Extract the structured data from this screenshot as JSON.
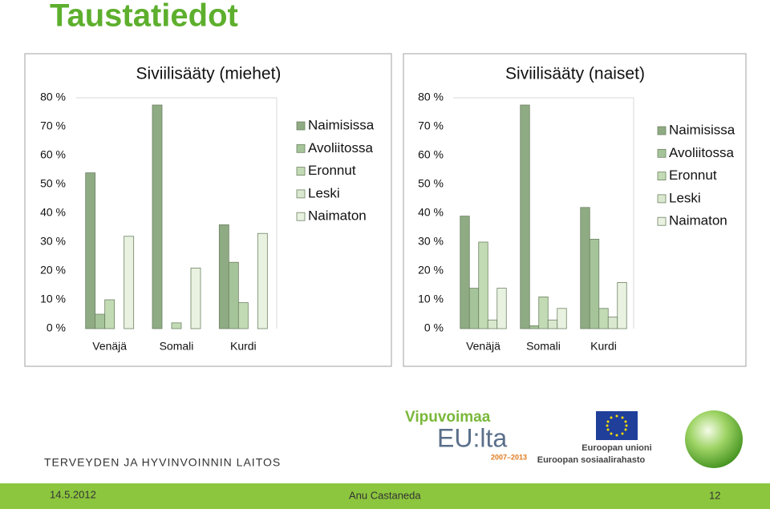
{
  "slide": {
    "title": "Taustatiedot",
    "footer": {
      "date": "14.5.2012",
      "author": "Anu Castaneda",
      "page": "12"
    },
    "logos": {
      "institute": "TERVEYDEN JA HYVINVOINNIN LAITOS",
      "program": "Vipuvoimaa",
      "program_sub": "EU:lta",
      "years": "2007–2013",
      "eu": "Euroopan unioni",
      "esf": "Euroopan sosiaalirahasto"
    }
  },
  "chart_data": [
    {
      "type": "bar",
      "title": "Siviilisääty (miehet)",
      "categories": [
        "Venäjä",
        "Somali",
        "Kurdi"
      ],
      "series": [
        {
          "name": "Naimisissa",
          "color": "#8fab84",
          "values": [
            54,
            77.5,
            36
          ]
        },
        {
          "name": "Avoliitossa",
          "color": "#a6c499",
          "values": [
            5,
            0,
            23
          ]
        },
        {
          "name": "Eronnut",
          "color": "#c3dbb4",
          "values": [
            10,
            2,
            9
          ]
        },
        {
          "name": "Leski",
          "color": "#d9e8cf",
          "values": [
            0,
            0,
            0
          ]
        },
        {
          "name": "Naimaton",
          "color": "#e9f2e1",
          "values": [
            32,
            21,
            33
          ]
        }
      ],
      "ylim": [
        0,
        80
      ],
      "yticks": [
        {
          "value": 0,
          "label": "0 %"
        },
        {
          "value": 10,
          "label": "10 %"
        },
        {
          "value": 20,
          "label": "20 %"
        },
        {
          "value": 30,
          "label": "30 %"
        },
        {
          "value": 40,
          "label": "40 %"
        },
        {
          "value": 50,
          "label": "50 %"
        },
        {
          "value": 60,
          "label": "60 %"
        },
        {
          "value": 70,
          "label": "70 %"
        },
        {
          "value": 80,
          "label": "80 %"
        }
      ],
      "grid": false,
      "legend": "right"
    },
    {
      "type": "bar",
      "title": "Siviilisääty (naiset)",
      "categories": [
        "Venäjä",
        "Somali",
        "Kurdi"
      ],
      "series": [
        {
          "name": "Naimisissa",
          "color": "#8fab84",
          "values": [
            39,
            77.5,
            42
          ]
        },
        {
          "name": "Avoliitossa",
          "color": "#a6c499",
          "values": [
            14,
            1,
            31
          ]
        },
        {
          "name": "Eronnut",
          "color": "#c3dbb4",
          "values": [
            30,
            11,
            7
          ]
        },
        {
          "name": "Leski",
          "color": "#d9e8cf",
          "values": [
            3,
            3,
            4
          ]
        },
        {
          "name": "Naimaton",
          "color": "#e9f2e1",
          "values": [
            14,
            7,
            16
          ]
        }
      ],
      "ylim": [
        0,
        80
      ],
      "yticks": [
        {
          "value": 0,
          "label": "0 %"
        },
        {
          "value": 10,
          "label": "10 %"
        },
        {
          "value": 20,
          "label": "20 %"
        },
        {
          "value": 30,
          "label": "30 %"
        },
        {
          "value": 40,
          "label": "40 %"
        },
        {
          "value": 50,
          "label": "50 %"
        },
        {
          "value": 60,
          "label": "60 %"
        },
        {
          "value": 70,
          "label": "70 %"
        },
        {
          "value": 80,
          "label": "80 %"
        }
      ],
      "grid": false,
      "legend": "right"
    }
  ]
}
